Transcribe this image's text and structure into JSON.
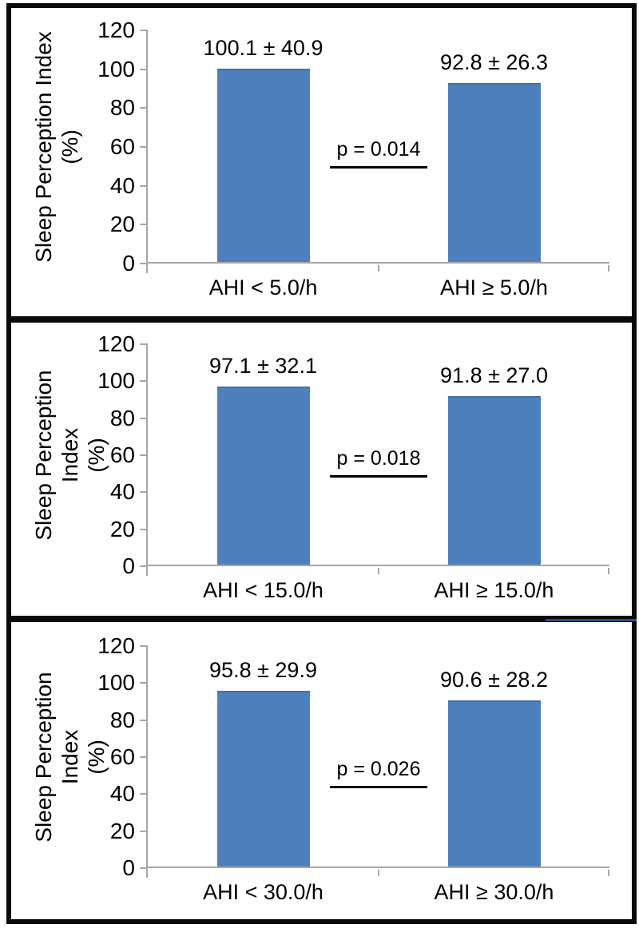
{
  "figure": {
    "bar_color": "#4E80BD",
    "bar_top_edge_color": "#46719F",
    "axis_color": "#A6A6A6",
    "text_color": "#000000",
    "panel_border_color": "#0A0A0A",
    "artifact_line_color": "#2B4B8F"
  },
  "chart_data": [
    {
      "type": "bar",
      "ylabel_line1": "Sleep Perception Index",
      "ylabel_line2": "(%)",
      "ylim": [
        0,
        120
      ],
      "yticks": [
        0,
        20,
        40,
        60,
        80,
        100,
        120
      ],
      "grid": false,
      "legend": false,
      "categories": [
        "AHI < 5.0/h",
        "AHI ≥ 5.0/h"
      ],
      "values": [
        100.1,
        92.8
      ],
      "value_labels": [
        "100.1 ± 40.9",
        "92.8 ± 26.3"
      ],
      "p_label": "p = 0.014",
      "p_line_y": 49
    },
    {
      "type": "bar",
      "ylabel_line1": "Sleep Perception Index",
      "ylabel_line2": "(%)",
      "ylim": [
        0,
        120
      ],
      "yticks": [
        0,
        20,
        40,
        60,
        80,
        100,
        120
      ],
      "grid": false,
      "legend": false,
      "categories": [
        "AHI < 15.0/h",
        "AHI ≥ 15.0/h"
      ],
      "values": [
        97.1,
        91.8
      ],
      "value_labels": [
        "97.1 ± 32.1",
        "91.8 ± 27.0"
      ],
      "p_label": "p = 0.018",
      "p_line_y": 48
    },
    {
      "type": "bar",
      "ylabel_line1": "Sleep Perception Index",
      "ylabel_line2": "(%)",
      "ylim": [
        0,
        120
      ],
      "yticks": [
        0,
        20,
        40,
        60,
        80,
        100,
        120
      ],
      "grid": false,
      "legend": false,
      "categories": [
        "AHI < 30.0/h",
        "AHI ≥ 30.0/h"
      ],
      "values": [
        95.8,
        90.6
      ],
      "value_labels": [
        "95.8 ± 29.9",
        "90.6 ± 28.2"
      ],
      "p_label": "p = 0.026",
      "p_line_y": 43
    }
  ]
}
